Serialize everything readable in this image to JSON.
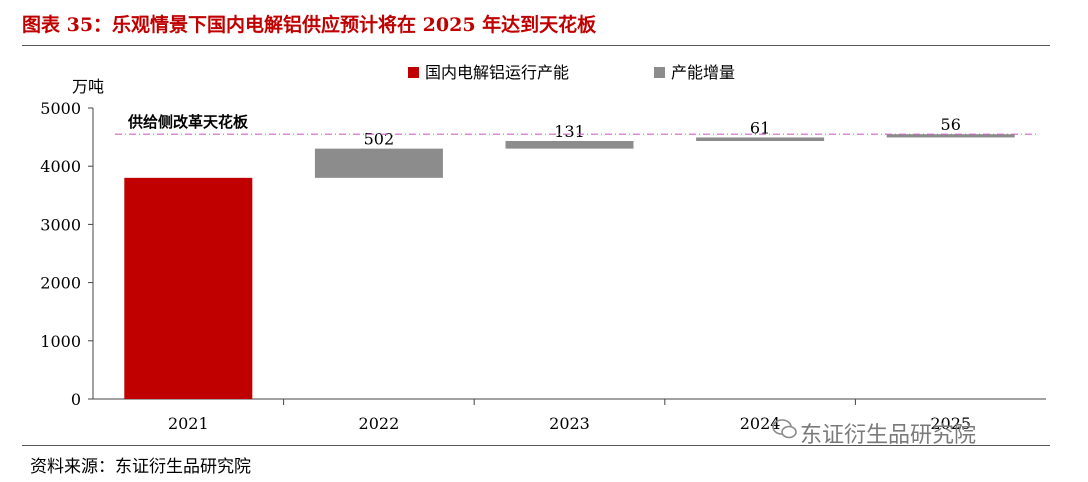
{
  "figure": {
    "title": "图表 35：乐观情景下国内电解铝供应预计将在 2025 年达到天花板",
    "source": "资料来源：东证衍生品研究院",
    "watermark": "东证衍生品研究院"
  },
  "chart_data": {
    "type": "bar",
    "subtype": "waterfall",
    "y_unit": "万吨",
    "categories": [
      "2021",
      "2022",
      "2023",
      "2024",
      "2025"
    ],
    "series": [
      {
        "name": "国内电解铝运行产能",
        "color": "#c00000",
        "values": [
          3800,
          null,
          null,
          null,
          null
        ]
      },
      {
        "name": "产能增量",
        "color": "#8c8c8c",
        "values": [
          null,
          502,
          131,
          61,
          56
        ],
        "data_labels": [
          "502",
          "131",
          "61",
          "56"
        ]
      }
    ],
    "ylim": [
      0,
      5000
    ],
    "yticks": [
      "0",
      "1000",
      "2000",
      "3000",
      "4000",
      "5000"
    ],
    "reference_line": {
      "label": "供给侧改革天花板",
      "value": 4550,
      "color": "#cc66cc"
    },
    "legend_position": "top",
    "grid": false
  }
}
